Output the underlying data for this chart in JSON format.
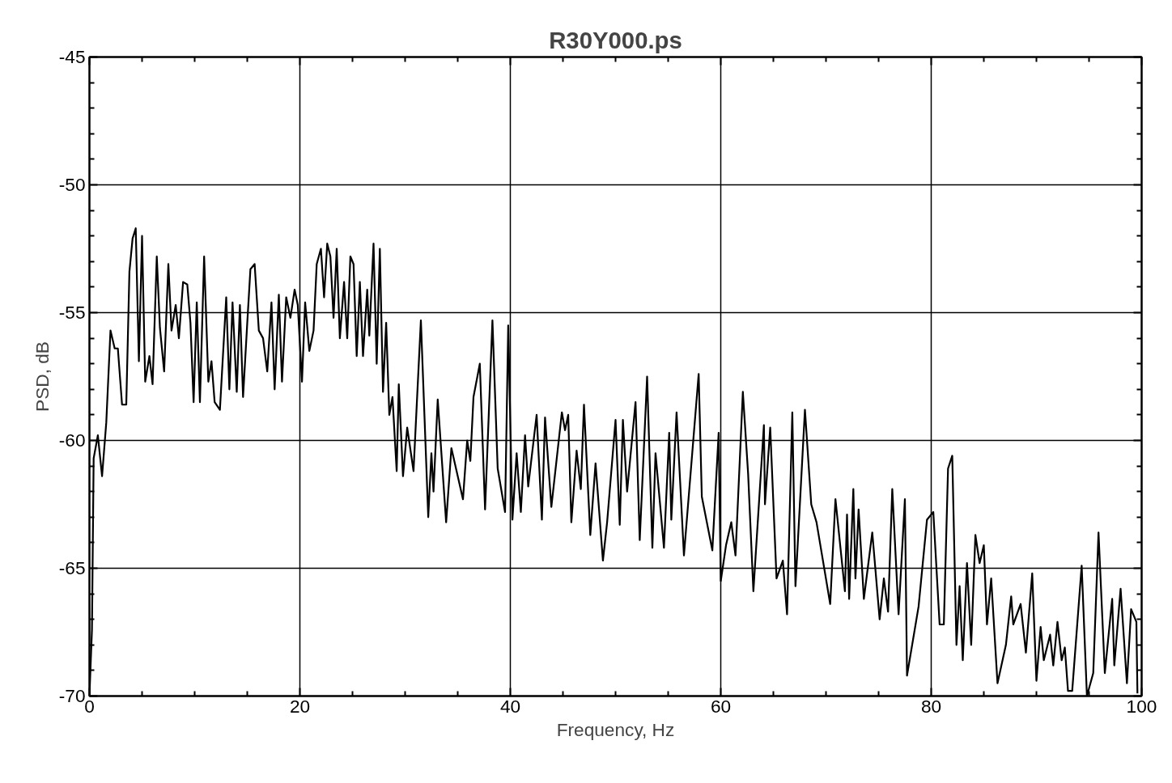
{
  "chart_data": {
    "type": "line",
    "title": "R30Y000.ps",
    "xlabel": "Frequency, Hz",
    "ylabel": "PSD, dB",
    "x": [
      0,
      0.24,
      0.4,
      0.8,
      1.2,
      1.6,
      2.0,
      2.4,
      2.7,
      3.1,
      3.5,
      3.8,
      4.1,
      4.4,
      4.7,
      5.0,
      5.3,
      5.7,
      6.0,
      6.4,
      6.7,
      7.1,
      7.5,
      7.8,
      8.2,
      8.5,
      8.9,
      9.3,
      9.6,
      9.9,
      10.2,
      10.5,
      10.9,
      11.3,
      11.6,
      11.9,
      12.4,
      13.0,
      13.3,
      13.6,
      14.0,
      14.3,
      14.6,
      15.0,
      15.3,
      15.7,
      16.1,
      16.5,
      16.9,
      17.3,
      17.6,
      18.0,
      18.3,
      18.7,
      19.1,
      19.5,
      19.8,
      20.2,
      20.5,
      20.9,
      21.3,
      21.6,
      22.0,
      22.3,
      22.6,
      22.9,
      23.2,
      23.5,
      23.8,
      24.2,
      24.5,
      24.8,
      25.1,
      25.4,
      25.7,
      26.0,
      26.4,
      26.6,
      27.0,
      27.3,
      27.6,
      27.9,
      28.2,
      28.5,
      28.8,
      29.2,
      29.4,
      29.8,
      30.2,
      30.8,
      31.5,
      32.2,
      32.5,
      32.7,
      33.1,
      33.9,
      34.4,
      35.5,
      35.9,
      36.2,
      36.5,
      37.1,
      37.6,
      38.3,
      38.8,
      39.5,
      39.8,
      40.2,
      40.6,
      41.0,
      41.4,
      41.7,
      42.5,
      43.0,
      43.3,
      43.9,
      44.9,
      45.2,
      45.5,
      45.8,
      46.3,
      46.7,
      47.0,
      47.6,
      48.1,
      48.8,
      49.2,
      50.0,
      50.4,
      50.7,
      51.1,
      51.9,
      52.3,
      53.0,
      53.5,
      53.8,
      54.6,
      55.1,
      55.3,
      55.8,
      56.5,
      57.9,
      58.2,
      59.2,
      59.8,
      60.0,
      60.5,
      61.0,
      61.4,
      62.1,
      62.6,
      63.1,
      64.1,
      64.2,
      64.7,
      65.3,
      65.9,
      66.3,
      66.8,
      67.1,
      68.0,
      68.6,
      69.1,
      70.4,
      70.9,
      71.8,
      72.0,
      72.2,
      72.6,
      72.8,
      73.1,
      73.6,
      74.4,
      75.1,
      75.5,
      75.9,
      76.3,
      76.9,
      77.5,
      77.7,
      78.8,
      79.6,
      80.2,
      80.8,
      81.2,
      81.6,
      82.0,
      82.4,
      82.7,
      83.0,
      83.4,
      83.8,
      84.2,
      84.6,
      85.0,
      85.3,
      85.7,
      86.3,
      87.1,
      87.6,
      87.8,
      88.5,
      89.0,
      89.6,
      90.0,
      90.4,
      90.7,
      91.3,
      91.6,
      92.0,
      92.4,
      92.7,
      93.0,
      93.4,
      94.3,
      94.8,
      95.4,
      95.9,
      96.5,
      97.2,
      97.4,
      98.0,
      98.6,
      99.0,
      99.5,
      99.6
    ],
    "series": [
      {
        "color": "#000000",
        "values": [
          -70.0,
          -67.4,
          -60.7,
          -59.8,
          -61.4,
          -59.3,
          -55.7,
          -56.4,
          -56.4,
          -58.6,
          -58.6,
          -53.4,
          -52.1,
          -51.7,
          -56.9,
          -52.0,
          -57.7,
          -56.7,
          -57.8,
          -52.8,
          -55.6,
          -57.3,
          -53.1,
          -55.7,
          -54.7,
          -56.0,
          -53.8,
          -53.9,
          -55.4,
          -58.5,
          -54.6,
          -58.5,
          -52.8,
          -57.7,
          -56.9,
          -58.5,
          -58.8,
          -54.4,
          -58.0,
          -54.6,
          -58.1,
          -54.7,
          -58.3,
          -55.4,
          -53.3,
          -53.1,
          -55.7,
          -56.0,
          -57.3,
          -54.6,
          -58.0,
          -54.3,
          -57.7,
          -54.4,
          -55.2,
          -54.1,
          -54.7,
          -57.7,
          -54.6,
          -56.5,
          -55.7,
          -53.1,
          -52.5,
          -54.4,
          -52.3,
          -52.8,
          -55.2,
          -52.5,
          -56.0,
          -53.8,
          -56.0,
          -52.8,
          -53.1,
          -56.7,
          -53.8,
          -56.7,
          -54.1,
          -55.9,
          -52.3,
          -57.0,
          -52.5,
          -58.1,
          -55.4,
          -59.0,
          -58.3,
          -61.2,
          -57.8,
          -61.4,
          -59.5,
          -61.2,
          -55.3,
          -63.0,
          -60.5,
          -62.0,
          -58.4,
          -63.2,
          -60.3,
          -62.3,
          -60.0,
          -60.8,
          -58.3,
          -57.0,
          -62.7,
          -55.3,
          -61.1,
          -62.8,
          -55.5,
          -63.1,
          -60.5,
          -62.8,
          -59.8,
          -61.8,
          -59.0,
          -63.1,
          -59.1,
          -62.6,
          -58.9,
          -59.6,
          -59.0,
          -63.2,
          -60.4,
          -61.9,
          -58.6,
          -63.7,
          -60.9,
          -64.7,
          -63.2,
          -59.2,
          -63.3,
          -59.2,
          -62.0,
          -58.5,
          -63.9,
          -57.5,
          -64.2,
          -60.5,
          -64.2,
          -59.7,
          -63.1,
          -58.9,
          -64.5,
          -57.4,
          -62.2,
          -64.3,
          -59.7,
          -65.5,
          -64.1,
          -63.2,
          -64.5,
          -58.1,
          -61.3,
          -65.9,
          -59.4,
          -62.5,
          -59.5,
          -65.4,
          -64.7,
          -66.8,
          -58.9,
          -65.7,
          -58.8,
          -62.5,
          -63.2,
          -66.4,
          -62.3,
          -65.9,
          -62.9,
          -66.2,
          -61.9,
          -65.4,
          -62.7,
          -66.2,
          -63.6,
          -67.0,
          -65.4,
          -66.7,
          -61.9,
          -66.8,
          -62.3,
          -69.2,
          -66.5,
          -63.1,
          -62.8,
          -67.2,
          -67.2,
          -61.1,
          -60.6,
          -68.0,
          -65.7,
          -68.6,
          -64.8,
          -68.0,
          -63.7,
          -64.8,
          -64.1,
          -67.2,
          -65.4,
          -69.5,
          -68.0,
          -66.1,
          -67.2,
          -66.4,
          -68.3,
          -65.2,
          -69.4,
          -67.3,
          -68.6,
          -67.6,
          -68.8,
          -67.1,
          -68.6,
          -68.1,
          -69.8,
          -69.8,
          -64.9,
          -70.0,
          -69.1,
          -63.6,
          -69.1,
          -66.2,
          -68.8,
          -65.8,
          -69.5,
          -66.6,
          -67.1,
          -69.9
        ]
      }
    ],
    "xlim": [
      0,
      100
    ],
    "ylim": [
      -70,
      -45
    ],
    "xticks": [
      0,
      {
        "value": 5,
        "label": null
      },
      {
        "value": 10,
        "label": null
      },
      {
        "value": 15,
        "label": null
      },
      20,
      {
        "value": 25,
        "label": null
      },
      {
        "value": 30,
        "label": null
      },
      {
        "value": 35,
        "label": null
      },
      40,
      {
        "value": 45,
        "label": null
      },
      {
        "value": 50,
        "label": null
      },
      {
        "value": 55,
        "label": null
      },
      60,
      {
        "value": 65,
        "label": null
      },
      {
        "value": 70,
        "label": null
      },
      {
        "value": 75,
        "label": null
      },
      80,
      {
        "value": 85,
        "label": null
      },
      {
        "value": 90,
        "label": null
      },
      {
        "value": 95,
        "label": null
      },
      100
    ],
    "yticks": [
      -70,
      {
        "value": -69,
        "label": null
      },
      {
        "value": -68,
        "label": null
      },
      {
        "value": -67,
        "label": null
      },
      {
        "value": -66,
        "label": null
      },
      -65,
      {
        "value": -64,
        "label": null
      },
      {
        "value": -63,
        "label": null
      },
      {
        "value": -62,
        "label": null
      },
      {
        "value": -61,
        "label": null
      },
      -60,
      {
        "value": -59,
        "label": null
      },
      {
        "value": -58,
        "label": null
      },
      {
        "value": -57,
        "label": null
      },
      {
        "value": -56,
        "label": null
      },
      -55,
      {
        "value": -54,
        "label": null
      },
      {
        "value": -53,
        "label": null
      },
      {
        "value": -52,
        "label": null
      },
      {
        "value": -51,
        "label": null
      },
      -50,
      {
        "value": -49,
        "label": null
      },
      {
        "value": -48,
        "label": null
      },
      {
        "value": -47,
        "label": null
      },
      {
        "value": -46,
        "label": null
      },
      -45
    ],
    "grid": true,
    "line_style": "solid"
  }
}
